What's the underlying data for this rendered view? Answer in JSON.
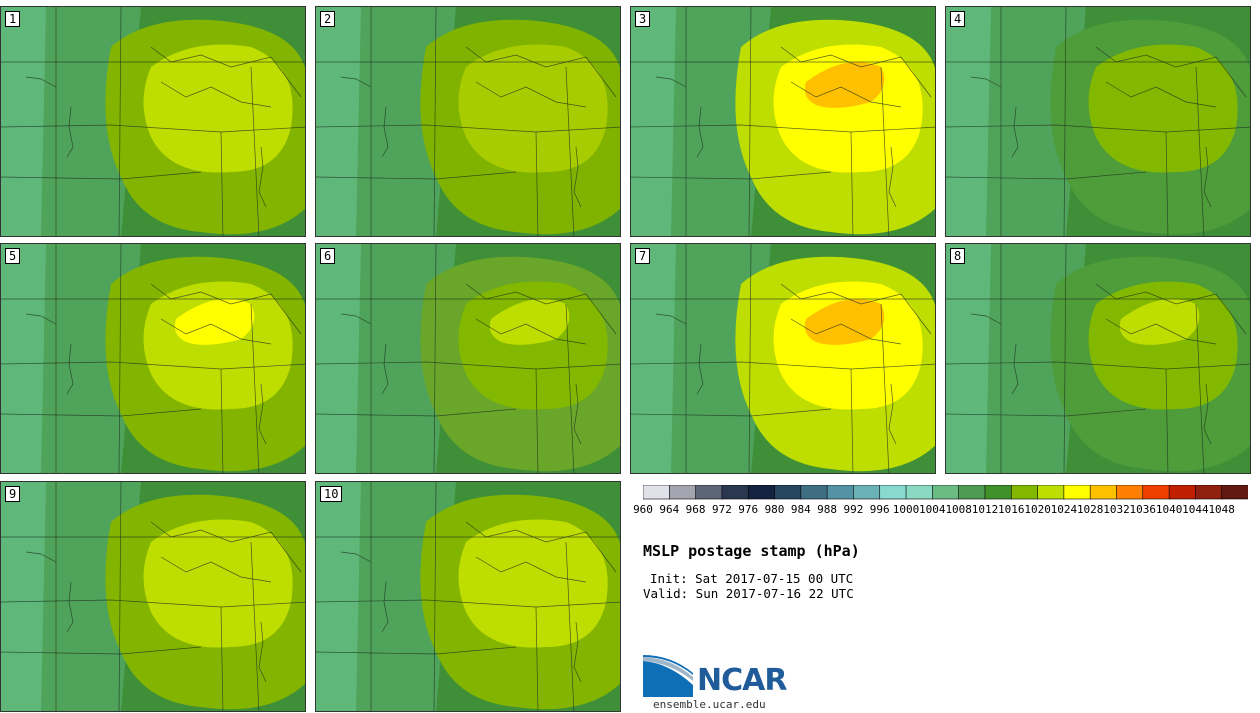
{
  "title": "MSLP postage stamp (hPa)",
  "init_label": "Init: Sat 2017-07-15 00 UTC",
  "valid_label": "Valid: Sun 2017-07-16 22 UTC",
  "logo": {
    "name": "NCAR",
    "site": "ensemble.ucar.edu"
  },
  "colorbar": {
    "colors": [
      "#e1e1ea",
      "#a4a4b0",
      "#5c6676",
      "#2b3650",
      "#132240",
      "#274660",
      "#3f6e82",
      "#5493a3",
      "#6ab2b6",
      "#89d9cf",
      "#8ad9c3",
      "#6bbc83",
      "#4e9c54",
      "#41912a",
      "#82b800",
      "#bedd00",
      "#ffff00",
      "#ffc000",
      "#ff8000",
      "#f04000",
      "#c02000",
      "#902010",
      "#601810"
    ],
    "ticks": [
      "960",
      "964",
      "968",
      "972",
      "976",
      "980",
      "984",
      "988",
      "992",
      "996",
      "1000",
      "1004",
      "1008",
      "1012",
      "1016",
      "1020",
      "1024",
      "1028",
      "1032",
      "1036",
      "1040",
      "1044",
      "1048"
    ]
  },
  "members": [
    {
      "label": "1",
      "outer": "#83b500",
      "inner": "#bedd00",
      "peak": null
    },
    {
      "label": "2",
      "outer": "#7fb300",
      "inner": "#a8cc00",
      "peak": null
    },
    {
      "label": "3",
      "outer": "#bedd00",
      "inner": "#ffff00",
      "peak": "#ffc000"
    },
    {
      "label": "4",
      "outer": "#4e9c3a",
      "inner": "#82b800",
      "peak": null
    },
    {
      "label": "5",
      "outer": "#83b500",
      "inner": "#bedd00",
      "peak": "#ffff00"
    },
    {
      "label": "6",
      "outer": "#6aa62a",
      "inner": "#82b800",
      "peak": "#bedd00"
    },
    {
      "label": "7",
      "outer": "#bedd00",
      "inner": "#ffff00",
      "peak": "#ffc000"
    },
    {
      "label": "8",
      "outer": "#4e9c3a",
      "inner": "#82b800",
      "peak": "#bedd00"
    },
    {
      "label": "9",
      "outer": "#83b500",
      "inner": "#bedd00",
      "peak": null
    },
    {
      "label": "10",
      "outer": "#83b500",
      "inner": "#bedd00",
      "peak": null
    }
  ]
}
